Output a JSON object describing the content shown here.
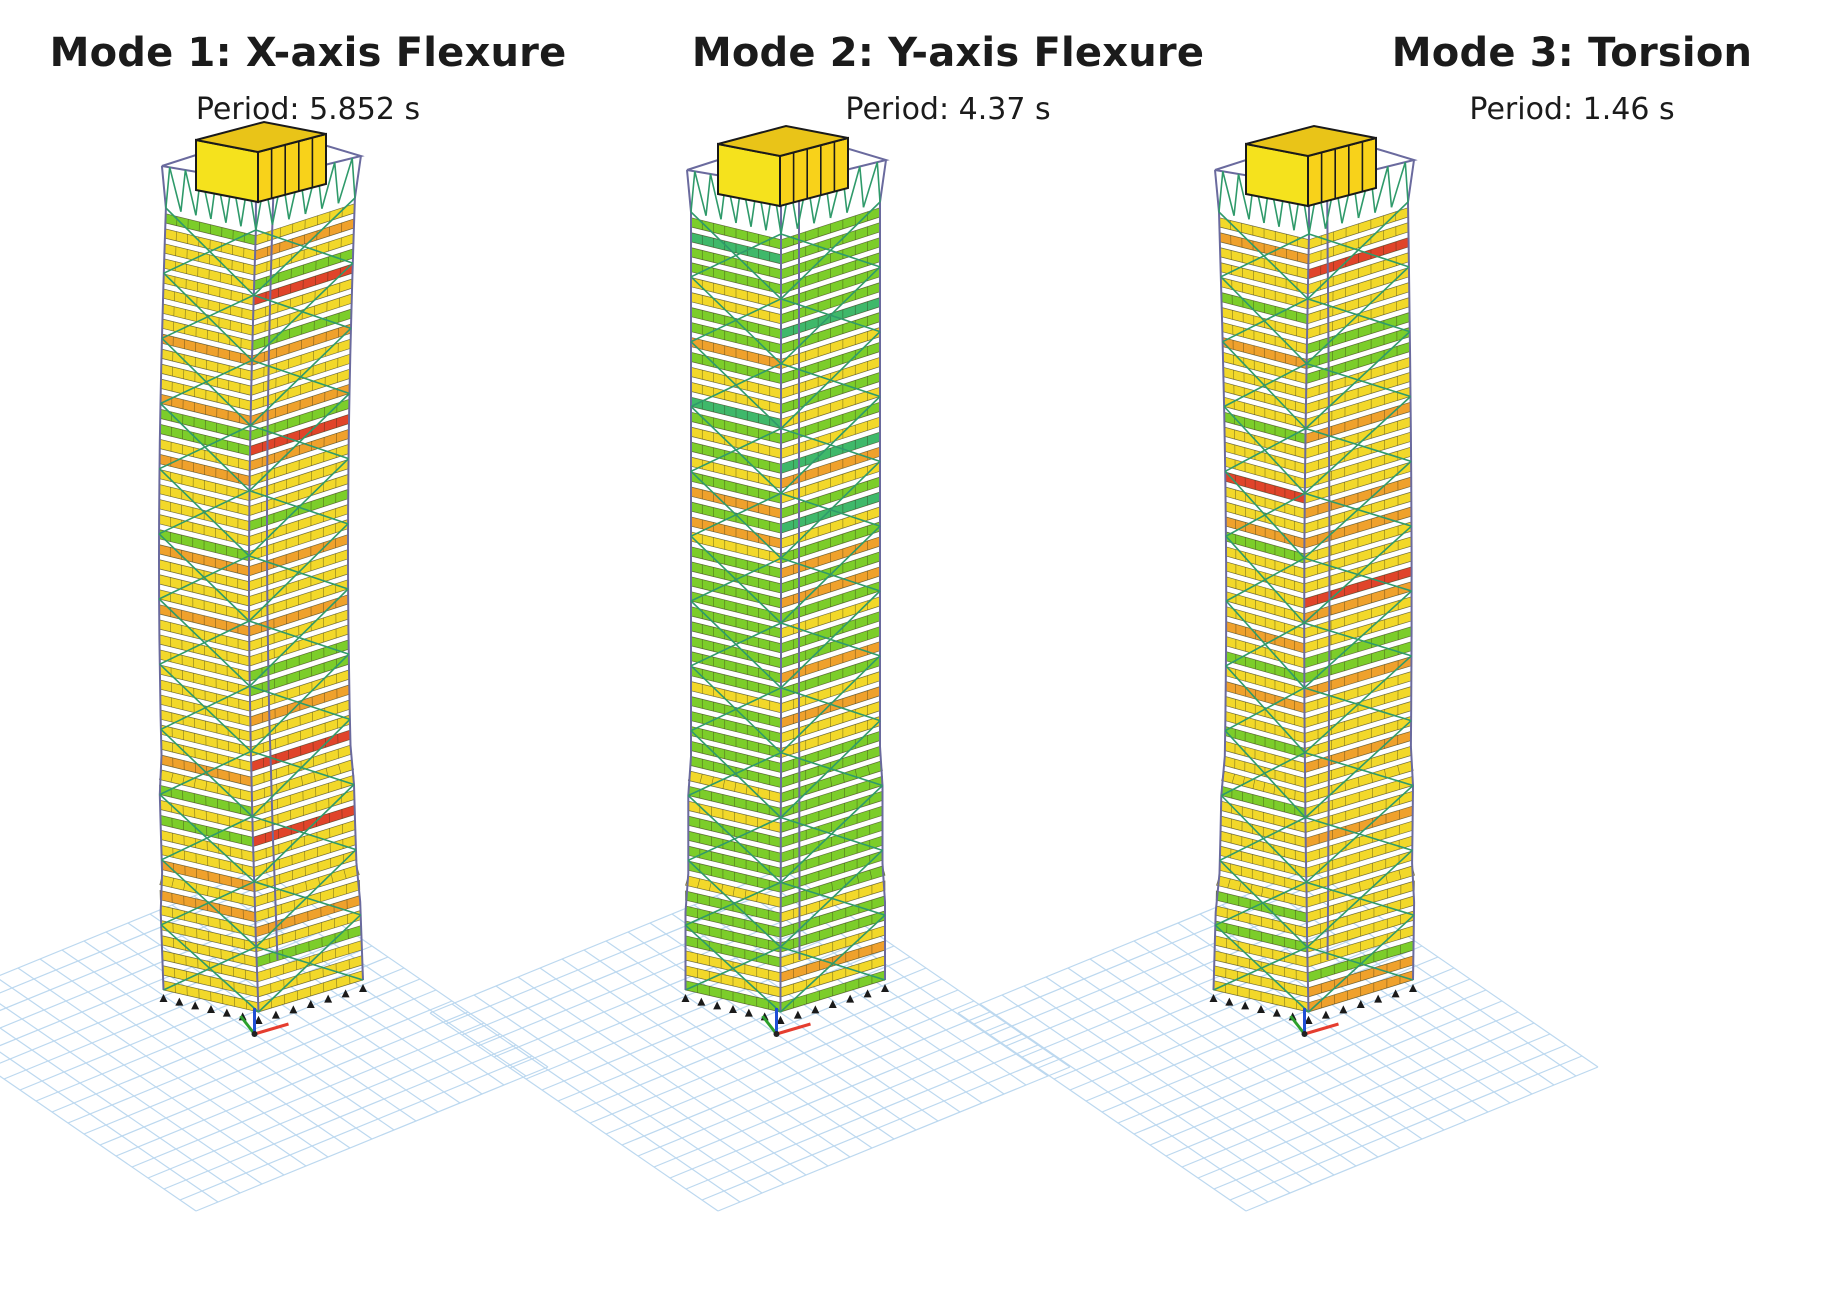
{
  "modes": [
    {
      "title": "Mode 1: X-axis Flexure",
      "period": "Period: 5.852 s"
    },
    {
      "title": "Mode 2: Y-axis Flexure",
      "period": "Period: 4.37 s"
    },
    {
      "title": "Mode 3: Torsion",
      "period": "Period: 1.46 s"
    }
  ],
  "colors": {
    "floor_yellow": "#f2d82a",
    "floor_orange": "#efa12c",
    "floor_green": "#7ccd2a",
    "floor_blue": "#1e8fd6",
    "floor_red": "#e0442a",
    "brace_green": "#2f9a6a",
    "frame_purple": "#6a6a9e",
    "grid_lightblue": "#bcd8ef",
    "axis_red": "#e53d2f",
    "axis_green": "#2ca02c",
    "axis_blue": "#1f4fd6"
  }
}
